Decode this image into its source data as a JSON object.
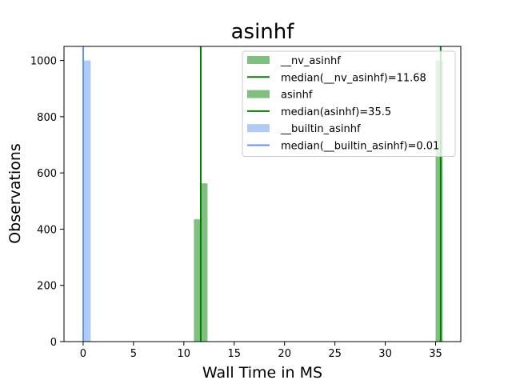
{
  "chart_data": {
    "type": "bar",
    "title": "asinhf",
    "xlabel": "Wall Time in MS",
    "ylabel": "Observations",
    "xlim": [
      -1.9,
      37.5
    ],
    "ylim": [
      0,
      1050
    ],
    "xticks": [
      0,
      5,
      10,
      15,
      20,
      25,
      30,
      35
    ],
    "yticks": [
      0,
      200,
      400,
      600,
      800,
      1000
    ],
    "grid": false,
    "legend_position": "top-right",
    "series": [
      {
        "name": "__nv_asinhf",
        "kind": "histogram",
        "color": "#008000",
        "alpha": 0.5,
        "bins": [
          {
            "x0": 11.0,
            "x1": 11.68,
            "count": 435
          },
          {
            "x0": 11.68,
            "x1": 12.35,
            "count": 563
          }
        ]
      },
      {
        "name": "median(__nv_asinhf)=11.68",
        "kind": "vline",
        "color": "#008000",
        "x": 11.68
      },
      {
        "name": "asinhf",
        "kind": "histogram",
        "color": "#008000",
        "alpha": 0.5,
        "bins": [
          {
            "x0": 35.0,
            "x1": 35.7,
            "count": 1000
          }
        ]
      },
      {
        "name": "median(asinhf)=35.5",
        "kind": "vline",
        "color": "#008000",
        "x": 35.5
      },
      {
        "name": "__builtin_asinhf",
        "kind": "histogram",
        "color": "#6495ed",
        "alpha": 0.5,
        "bins": [
          {
            "x0": 0.05,
            "x1": 0.75,
            "count": 1000
          }
        ]
      },
      {
        "name": "median(__builtin_asinhf)=0.01",
        "kind": "vline",
        "color": "#6495ed",
        "x": 0.01
      }
    ]
  }
}
